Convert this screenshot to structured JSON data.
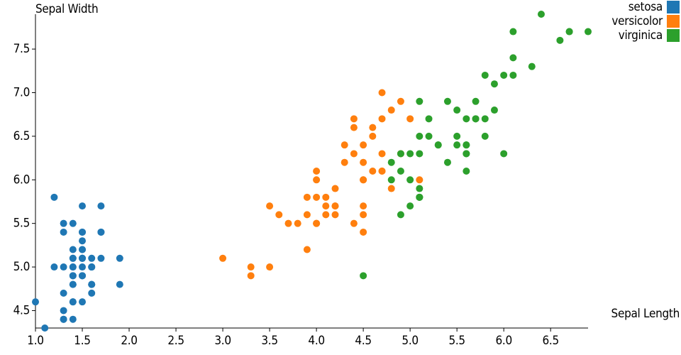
{
  "chart_data": {
    "type": "scatter",
    "x_label": "Sepal Length",
    "y_label": "Sepal Width",
    "xlim": [
      1.0,
      6.9
    ],
    "ylim": [
      4.3,
      7.9
    ],
    "xticks": [
      {
        "value": 1,
        "label": "1.0"
      },
      1.5,
      {
        "value": 2,
        "label": "2.0"
      },
      2.5,
      {
        "value": 3,
        "label": "3.0"
      },
      3.5,
      {
        "value": 4,
        "label": "4.0"
      },
      4.5,
      {
        "value": 5,
        "label": "5.0"
      },
      5.5,
      {
        "value": 6,
        "label": "6.0"
      },
      6.5
    ],
    "yticks": [
      4.5,
      {
        "value": 5,
        "label": "5.0"
      },
      5.5,
      {
        "value": 6,
        "label": "6.0"
      },
      6.5,
      {
        "value": 7,
        "label": "7.0"
      },
      7.5
    ],
    "grid": false,
    "legend": "top-right",
    "series": [
      {
        "name": "setosa",
        "color": "#1f77b4",
        "x": [
          1.4,
          1.4,
          1.3,
          1.5,
          1.4,
          1.7,
          1.4,
          1.5,
          1.4,
          1.5,
          1.5,
          1.6,
          1.4,
          1.1,
          1.2,
          1.5,
          1.3,
          1.4,
          1.7,
          1.5,
          1.7,
          1.5,
          1.0,
          1.7,
          1.9,
          1.6,
          1.6,
          1.5,
          1.4,
          1.6,
          1.6,
          1.5,
          1.5,
          1.4,
          1.5,
          1.2,
          1.3,
          1.4,
          1.3,
          1.5,
          1.3,
          1.3,
          1.3,
          1.6,
          1.9,
          1.4,
          1.6,
          1.4,
          1.5,
          1.4
        ],
        "y": [
          5.1,
          4.9,
          4.7,
          4.6,
          5.0,
          5.4,
          4.6,
          5.0,
          4.4,
          4.9,
          5.4,
          4.8,
          4.8,
          4.3,
          5.8,
          5.7,
          5.4,
          5.1,
          5.7,
          5.1,
          5.4,
          5.1,
          4.6,
          5.1,
          4.8,
          5.0,
          5.0,
          5.2,
          5.2,
          4.7,
          4.8,
          5.4,
          5.2,
          5.5,
          4.9,
          5.0,
          5.5,
          4.9,
          4.4,
          5.1,
          5.0,
          4.5,
          4.4,
          5.0,
          5.1,
          4.8,
          5.1,
          4.6,
          5.3,
          5.0
        ]
      },
      {
        "name": "versicolor",
        "color": "#ff7f0e",
        "x": [
          4.7,
          4.5,
          4.9,
          4.0,
          4.6,
          4.5,
          4.7,
          3.3,
          4.6,
          3.9,
          3.5,
          4.2,
          4.0,
          4.7,
          3.6,
          4.4,
          4.5,
          4.1,
          4.5,
          3.9,
          4.8,
          4.0,
          4.9,
          4.7,
          4.3,
          4.4,
          4.8,
          5.0,
          4.5,
          3.5,
          3.8,
          3.7,
          3.9,
          5.1,
          4.5,
          4.5,
          4.7,
          4.4,
          4.1,
          4.0,
          4.4,
          4.6,
          4.0,
          3.3,
          4.2,
          4.2,
          4.2,
          4.3,
          3.0,
          4.1
        ],
        "y": [
          7.0,
          6.4,
          6.9,
          5.5,
          6.5,
          5.7,
          6.3,
          4.9,
          6.6,
          5.2,
          5.0,
          5.9,
          6.0,
          6.1,
          5.6,
          6.7,
          5.6,
          5.8,
          6.2,
          5.6,
          5.9,
          6.1,
          6.3,
          6.1,
          6.4,
          6.6,
          6.8,
          6.7,
          6.0,
          5.7,
          5.5,
          5.5,
          5.8,
          6.0,
          5.4,
          6.0,
          6.7,
          6.3,
          5.6,
          5.5,
          5.5,
          6.1,
          5.8,
          5.0,
          5.6,
          5.7,
          5.7,
          6.2,
          5.1,
          5.7
        ]
      },
      {
        "name": "virginica",
        "color": "#2ca02c",
        "x": [
          6.0,
          5.1,
          5.9,
          5.6,
          5.8,
          6.6,
          4.5,
          6.3,
          5.8,
          6.1,
          5.1,
          5.3,
          5.5,
          5.0,
          5.1,
          5.3,
          5.5,
          6.7,
          6.9,
          5.0,
          5.7,
          4.9,
          6.7,
          4.9,
          5.7,
          6.0,
          4.8,
          4.9,
          5.6,
          5.8,
          6.1,
          6.4,
          5.6,
          5.1,
          5.6,
          6.1,
          5.6,
          5.5,
          4.8,
          5.4,
          5.6,
          5.1,
          5.1,
          5.9,
          5.7,
          5.2,
          5.0,
          5.2,
          5.4,
          5.1
        ],
        "y": [
          6.3,
          5.8,
          7.1,
          6.3,
          6.5,
          7.6,
          4.9,
          7.3,
          6.7,
          7.2,
          6.5,
          6.4,
          6.8,
          5.7,
          5.8,
          6.4,
          6.5,
          7.7,
          7.7,
          6.0,
          6.9,
          5.6,
          7.7,
          6.3,
          6.7,
          7.2,
          6.2,
          6.1,
          6.4,
          7.2,
          7.4,
          7.9,
          6.4,
          6.3,
          6.1,
          7.7,
          6.3,
          6.4,
          6.0,
          6.9,
          6.7,
          6.9,
          5.8,
          6.8,
          6.7,
          6.7,
          6.3,
          6.5,
          6.2,
          5.9
        ]
      }
    ]
  }
}
